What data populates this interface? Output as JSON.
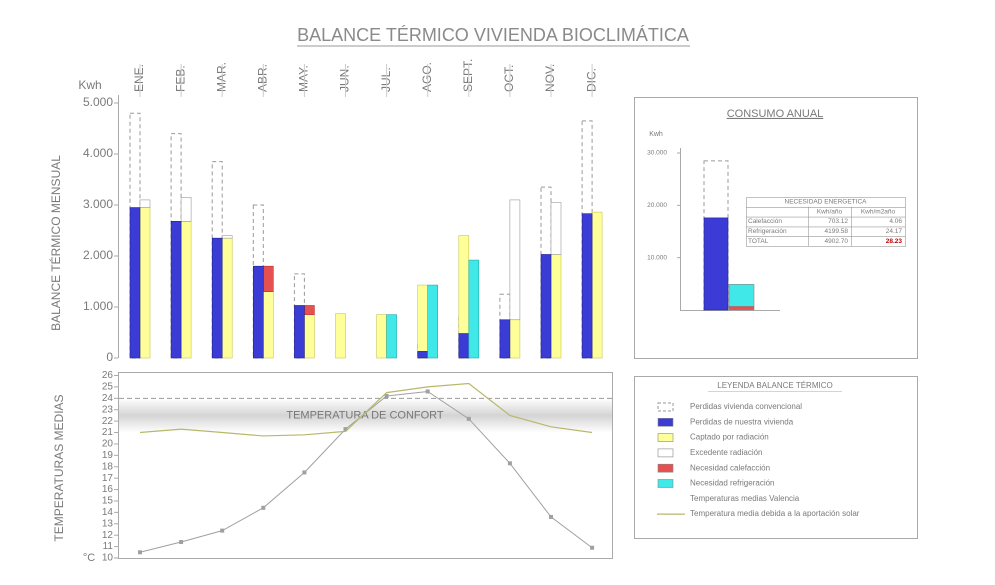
{
  "chart_data": [
    {
      "type": "bar",
      "title": "BALANCE TÉRMICO VIVIENDA BIOCLIMÁTICA",
      "ylabel": "BALANCE TÉRMICO MENSUAL",
      "y_unit": "Kwh",
      "legend_title": "LEYENDA BALANCE TÉRMICO",
      "categories": [
        "ENE.",
        "FEB.",
        "MAR.",
        "ABR.",
        "MAY.",
        "JUN.",
        "JUL.",
        "AGO.",
        "SEPT.",
        "OCT.",
        "NOV.",
        "DIC."
      ],
      "ylim": [
        0,
        5000
      ],
      "yticks": [
        0,
        {
          "value": 1000,
          "label": "1.000"
        },
        {
          "value": 2000,
          "label": "2.000"
        },
        {
          "value": 3000,
          "label": "3.000"
        },
        {
          "value": 4000,
          "label": "4.000"
        },
        {
          "value": 5000,
          "label": "5.000"
        }
      ],
      "series": [
        {
          "name": "Perdidas vivienda convencional",
          "color": "#9a9a9a",
          "values": [
            4800,
            4400,
            3850,
            3000,
            1650,
            null,
            null,
            250,
            800,
            1250,
            3350,
            4650
          ]
        },
        {
          "name": "Perdidas de nuestra vivienda",
          "color": "#3b3bd6",
          "values": [
            2950,
            2680,
            2350,
            1800,
            1030,
            null,
            null,
            130,
            480,
            750,
            2030,
            2830
          ]
        },
        {
          "name": "Captado por radiación",
          "color": "#ffff99",
          "values": [
            2950,
            2680,
            2350,
            1300,
            850,
            870,
            850,
            1430,
            2400,
            750,
            2030,
            2860
          ]
        },
        {
          "name": "Excedente radiación",
          "color": "#ffffff",
          "values": [
            150,
            470,
            50,
            null,
            null,
            null,
            null,
            null,
            null,
            2350,
            1020,
            null
          ]
        },
        {
          "name": "Necesidad calefacción",
          "color": "#e65050",
          "values": [
            null,
            null,
            null,
            500,
            180,
            null,
            null,
            null,
            null,
            null,
            null,
            null
          ]
        },
        {
          "name": "Necesidad refrigeración",
          "color": "#40e8e8",
          "values": [
            null,
            null,
            null,
            null,
            null,
            null,
            850,
            1430,
            1920,
            null,
            null,
            null
          ]
        }
      ]
    },
    {
      "type": "line",
      "ylabel": "TEMPERATURAS MEDIAS",
      "y_unit": "°C",
      "comfort_label": "TEMPERATURA DE CONFORT",
      "comfort_range": [
        21,
        24
      ],
      "ylim": [
        10,
        26
      ],
      "yticks": [
        10,
        11,
        12,
        13,
        14,
        15,
        16,
        17,
        18,
        19,
        20,
        21,
        22,
        23,
        24,
        25,
        26
      ],
      "series": [
        {
          "name": "Temperaturas medias Valencia",
          "color": "#a0a0a0",
          "values": [
            10.5,
            11.4,
            12.4,
            14.4,
            17.5,
            21.3,
            24.2,
            24.6,
            22.2,
            18.3,
            13.6,
            10.9
          ]
        },
        {
          "name": "Temperatura media debida a la aportación solar",
          "color": "#b8b86a",
          "values": [
            21,
            21.3,
            21,
            20.7,
            20.8,
            21.1,
            24.5,
            25,
            25.3,
            22.5,
            21.5,
            21
          ]
        }
      ]
    },
    {
      "type": "bar",
      "title": "CONSUMO ANUAL",
      "y_unit": "Kwh",
      "ylim": [
        0,
        30000
      ],
      "yticks": [
        {
          "value": 10000,
          "label": "10.000"
        },
        {
          "value": 20000,
          "label": "20.000"
        },
        {
          "value": 30000,
          "label": "30.000"
        }
      ],
      "series": [
        {
          "color": "#9a9a9a",
          "values": [
            28500
          ]
        },
        {
          "color": "#3b3bd6",
          "values": [
            17600
          ]
        }
      ],
      "table": {
        "title": "NECESIDAD ENERGETICA",
        "columns": [
          "Kwh/año",
          "Kwh/m2año"
        ],
        "rows": [
          {
            "label": "Calefacción",
            "values": [
              703.12,
              4.06
            ],
            "color": "#e65050"
          },
          {
            "label": "Refrigeración",
            "values": [
              4199.58,
              24.17
            ],
            "color": "#40e8e8"
          },
          {
            "label": "TOTAL",
            "values": [
              {
                "value": 4902.7,
                "label": "4902.70"
              },
              28.23
            ]
          }
        ]
      }
    }
  ]
}
